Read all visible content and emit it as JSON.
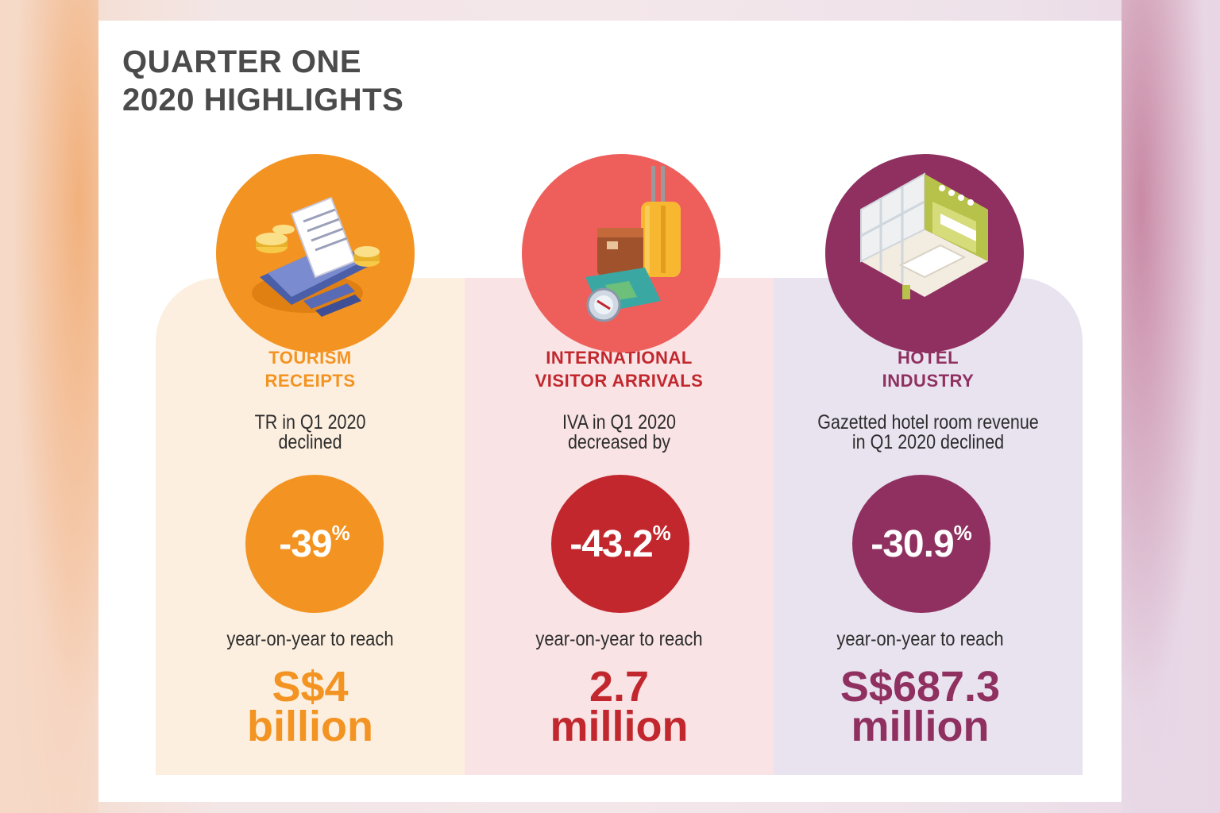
{
  "title": {
    "line1": "QUARTER ONE",
    "line2": "2020 HIGHLIGHTS"
  },
  "colors": {
    "orange": "#f39322",
    "red": "#c1272d",
    "coral": "#ee5f5b",
    "plum": "#8f3060",
    "panel_orange": "#fcefdf",
    "panel_pink": "#f9e3e5",
    "panel_lilac": "#e9e3f0"
  },
  "panels": [
    {
      "icon": "receipt-coins-cards-icon",
      "category_line1": "TOURISM",
      "category_line2": "RECEIPTS",
      "desc_line1": "TR in Q1 2020",
      "desc_line2": "declined",
      "change": "-39",
      "percent": "%",
      "reach": "year-on-year to reach",
      "amount_line1": "S$4",
      "amount_line2": "billion"
    },
    {
      "icon": "luggage-map-compass-icon",
      "category_line1": "INTERNATIONAL",
      "category_line2": "VISITOR ARRIVALS",
      "desc_line1": "IVA in Q1 2020",
      "desc_line2": "decreased by",
      "change": "-43.2",
      "percent": "%",
      "reach": "year-on-year to reach",
      "amount_line1": "2.7",
      "amount_line2": "million"
    },
    {
      "icon": "hotel-lobby-icon",
      "category_line1": "HOTEL",
      "category_line2": "INDUSTRY",
      "desc_line1": "Gazetted hotel room revenue",
      "desc_line2": "in Q1 2020 declined",
      "change": "-30.9",
      "percent": "%",
      "reach": "year-on-year to reach",
      "amount_line1": "S$687.3",
      "amount_line2": "million"
    }
  ]
}
